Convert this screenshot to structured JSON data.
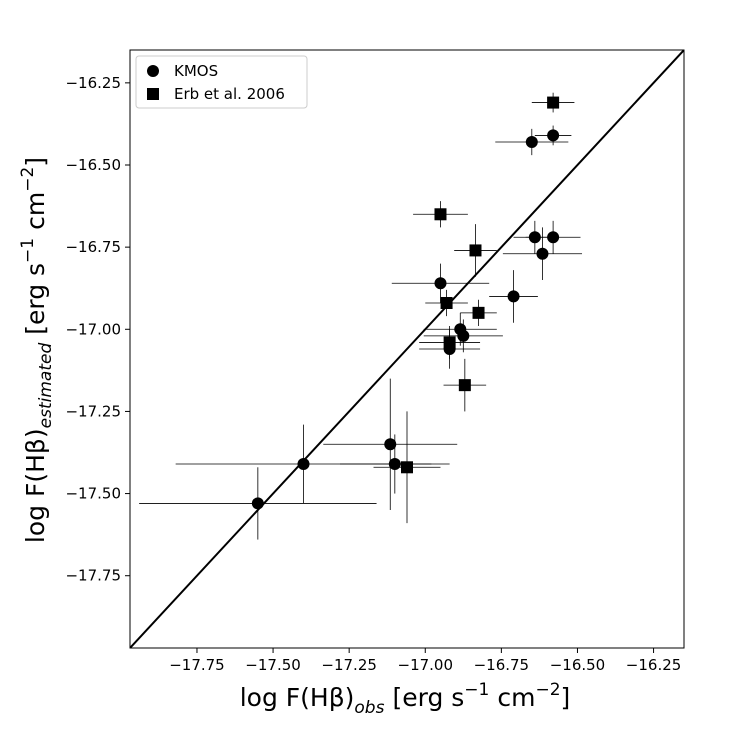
{
  "chart_data": {
    "type": "scatter",
    "xlabel": [
      {
        "text": "log F(Hβ)"
      },
      {
        "text": "obs",
        "shift": "sub"
      },
      {
        "text": "[erg s"
      },
      {
        "text": "−1",
        "shift": "sup"
      },
      {
        "text": "cm"
      },
      {
        "text": "−2",
        "shift": "sup"
      },
      {
        "text": "]"
      }
    ],
    "ylabel": [
      {
        "text": "log F(Hβ)"
      },
      {
        "text": "estimated",
        "shift": "sub"
      },
      {
        "text": "[erg s"
      },
      {
        "text": "−1",
        "shift": "sup"
      },
      {
        "text": "cm"
      },
      {
        "text": "−2",
        "shift": "sup"
      },
      {
        "text": "]"
      }
    ],
    "xlim": [
      -17.97,
      -16.15
    ],
    "ylim": [
      -17.97,
      -16.15
    ],
    "xticks": [
      {
        "value": -17.75,
        "label": "−17.75"
      },
      {
        "value": -17.5,
        "label": "−17.50"
      },
      {
        "value": -17.25,
        "label": "−17.25"
      },
      {
        "value": -17.0,
        "label": "−17.00"
      },
      {
        "value": -16.75,
        "label": "−16.75"
      },
      {
        "value": -16.5,
        "label": "−16.50"
      },
      {
        "value": -16.25,
        "label": "−16.25"
      }
    ],
    "yticks": [
      {
        "value": -16.25,
        "label": "−16.25"
      },
      {
        "value": -16.5,
        "label": "−16.50"
      },
      {
        "value": -16.75,
        "label": "−16.75"
      },
      {
        "value": -17.0,
        "label": "−17.00"
      },
      {
        "value": -17.25,
        "label": "−17.25"
      },
      {
        "value": -17.5,
        "label": "−17.50"
      },
      {
        "value": -17.75,
        "label": "−17.75"
      }
    ],
    "legend": "upper left",
    "one_to_one_line": true,
    "series": [
      {
        "name": "KMOS",
        "marker": "circle",
        "color": "#000000",
        "x": [
          -17.55,
          -17.4,
          -17.115,
          -17.1,
          -16.95,
          -16.92,
          -16.885,
          -16.875,
          -16.71,
          -16.65,
          -16.58,
          -16.64,
          -16.58,
          -16.615
        ],
        "values": [
          -17.53,
          -17.41,
          -17.35,
          -17.41,
          -16.86,
          -17.06,
          -17.0,
          -17.02,
          -16.9,
          -16.43,
          -16.41,
          -16.72,
          -16.72,
          -16.77
        ],
        "xerr": [
          0.39,
          0.42,
          0.22,
          0.18,
          0.16,
          0.1,
          0.12,
          0.13,
          0.08,
          0.12,
          0.06,
          0.07,
          0.09,
          0.13
        ],
        "yerr": [
          0.11,
          0.12,
          0.2,
          0.09,
          0.06,
          0.06,
          0.05,
          0.05,
          0.08,
          0.04,
          0.03,
          0.05,
          0.05,
          0.08
        ]
      },
      {
        "name": "Erb et al. 2006",
        "marker": "square",
        "color": "#000000",
        "x": [
          -16.58,
          -16.95,
          -16.835,
          -16.93,
          -16.825,
          -16.92,
          -16.87,
          -17.06
        ],
        "values": [
          -16.31,
          -16.65,
          -16.76,
          -16.92,
          -16.95,
          -17.04,
          -17.17,
          -17.42
        ],
        "xerr": [
          0.07,
          0.09,
          0.07,
          0.07,
          0.06,
          0.1,
          0.07,
          0.11
        ],
        "yerr": [
          0.03,
          0.04,
          0.08,
          0.04,
          0.04,
          0.05,
          0.08,
          0.17
        ]
      }
    ]
  }
}
